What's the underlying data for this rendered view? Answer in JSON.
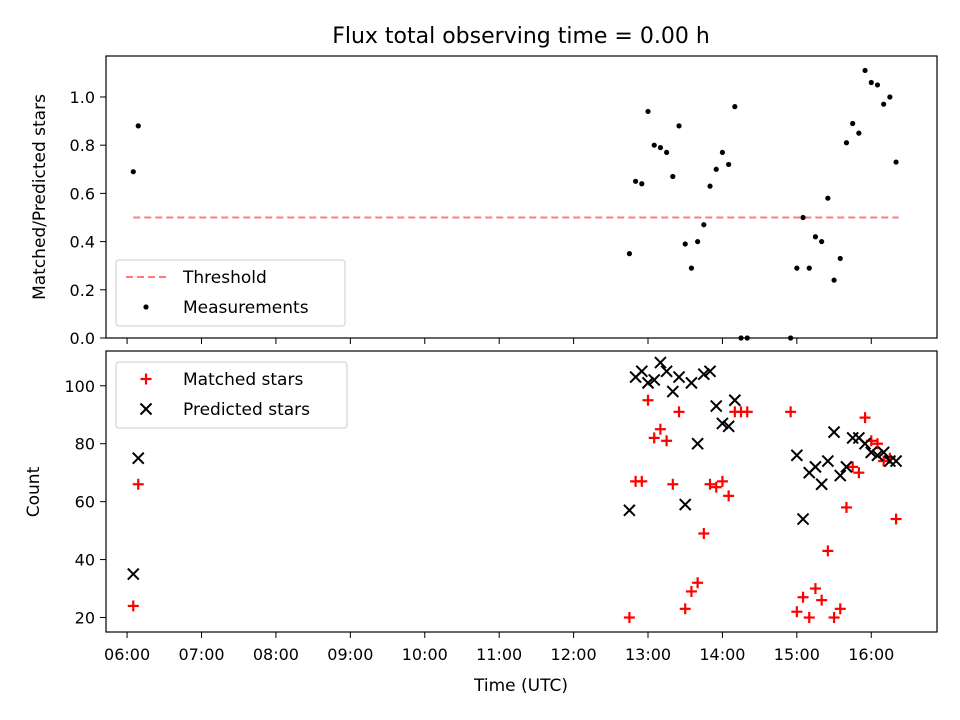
{
  "title": "Flux total observing time = 0.00 h",
  "chart_data": [
    {
      "type": "scatter",
      "ylabel": "Matched/Predicted stars",
      "ylim": [
        0,
        1.17
      ],
      "yticks": [
        "0.0",
        "0.2",
        "0.4",
        "0.6",
        "0.8",
        "1.0"
      ],
      "legend_placement": "lower-left",
      "threshold": {
        "name": "Threshold",
        "color": "#ff7b7b",
        "style": "dashed",
        "y": 0.5,
        "x_start": "06:05",
        "x_end": "16:22"
      },
      "series": [
        {
          "name": "Measurements",
          "color": "#000000",
          "marker": "dot",
          "points": [
            [
              "06:05",
              0.69
            ],
            [
              "06:09",
              0.88
            ],
            [
              "12:45",
              0.35
            ],
            [
              "12:50",
              0.65
            ],
            [
              "12:55",
              0.64
            ],
            [
              "13:00",
              0.94
            ],
            [
              "13:05",
              0.8
            ],
            [
              "13:10",
              0.79
            ],
            [
              "13:15",
              0.77
            ],
            [
              "13:20",
              0.67
            ],
            [
              "13:25",
              0.88
            ],
            [
              "13:30",
              0.39
            ],
            [
              "13:35",
              0.29
            ],
            [
              "13:40",
              0.4
            ],
            [
              "13:45",
              0.47
            ],
            [
              "13:50",
              0.63
            ],
            [
              "13:55",
              0.7
            ],
            [
              "14:00",
              0.77
            ],
            [
              "14:05",
              0.72
            ],
            [
              "14:10",
              0.96
            ],
            [
              "14:15",
              0.0
            ],
            [
              "14:20",
              0.0
            ],
            [
              "14:55",
              0.0
            ],
            [
              "15:00",
              0.29
            ],
            [
              "15:05",
              0.5
            ],
            [
              "15:10",
              0.29
            ],
            [
              "15:15",
              0.42
            ],
            [
              "15:20",
              0.4
            ],
            [
              "15:25",
              0.58
            ],
            [
              "15:30",
              0.24
            ],
            [
              "15:35",
              0.33
            ],
            [
              "15:40",
              0.81
            ],
            [
              "15:45",
              0.89
            ],
            [
              "15:50",
              0.85
            ],
            [
              "15:55",
              1.11
            ],
            [
              "16:00",
              1.06
            ],
            [
              "16:05",
              1.05
            ],
            [
              "16:10",
              0.97
            ],
            [
              "16:15",
              1.0
            ],
            [
              "16:20",
              0.73
            ]
          ]
        }
      ]
    },
    {
      "type": "scatter",
      "xlabel": "Time (UTC)",
      "ylabel": "Count",
      "ylim": [
        15,
        112
      ],
      "yticks": [
        "20",
        "40",
        "60",
        "80",
        "100"
      ],
      "xticks": [
        "06:00",
        "07:00",
        "08:00",
        "09:00",
        "10:00",
        "11:00",
        "12:00",
        "13:00",
        "14:00",
        "15:00",
        "16:00"
      ],
      "xlim": [
        "05:43",
        "16:53"
      ],
      "legend_placement": "upper-left",
      "series": [
        {
          "name": "Matched stars",
          "color": "#ff0000",
          "marker": "plus",
          "points": [
            [
              "06:05",
              24
            ],
            [
              "06:09",
              66
            ],
            [
              "12:45",
              20
            ],
            [
              "12:50",
              67
            ],
            [
              "12:55",
              67
            ],
            [
              "13:00",
              95
            ],
            [
              "13:05",
              82
            ],
            [
              "13:10",
              85
            ],
            [
              "13:15",
              81
            ],
            [
              "13:20",
              66
            ],
            [
              "13:25",
              91
            ],
            [
              "13:30",
              23
            ],
            [
              "13:35",
              29
            ],
            [
              "13:40",
              32
            ],
            [
              "13:45",
              49
            ],
            [
              "13:50",
              66
            ],
            [
              "13:55",
              65
            ],
            [
              "14:00",
              67
            ],
            [
              "14:05",
              62
            ],
            [
              "14:10",
              91
            ],
            [
              "14:15",
              91
            ],
            [
              "14:20",
              91
            ],
            [
              "14:55",
              91
            ],
            [
              "15:00",
              22
            ],
            [
              "15:05",
              27
            ],
            [
              "15:10",
              20
            ],
            [
              "15:15",
              30
            ],
            [
              "15:20",
              26
            ],
            [
              "15:25",
              43
            ],
            [
              "15:30",
              20
            ],
            [
              "15:35",
              23
            ],
            [
              "15:40",
              58
            ],
            [
              "15:45",
              72
            ],
            [
              "15:50",
              70
            ],
            [
              "15:55",
              89
            ],
            [
              "16:00",
              81
            ],
            [
              "16:05",
              80
            ],
            [
              "16:10",
              74
            ],
            [
              "16:15",
              75
            ],
            [
              "16:20",
              54
            ]
          ]
        },
        {
          "name": "Predicted stars",
          "color": "#000000",
          "marker": "x",
          "points": [
            [
              "06:05",
              35
            ],
            [
              "06:09",
              75
            ],
            [
              "12:45",
              57
            ],
            [
              "12:50",
              103
            ],
            [
              "12:55",
              105
            ],
            [
              "13:00",
              101
            ],
            [
              "13:05",
              102
            ],
            [
              "13:10",
              108
            ],
            [
              "13:15",
              105
            ],
            [
              "13:20",
              98
            ],
            [
              "13:25",
              103
            ],
            [
              "13:30",
              59
            ],
            [
              "13:35",
              101
            ],
            [
              "13:40",
              80
            ],
            [
              "13:45",
              104
            ],
            [
              "13:50",
              105
            ],
            [
              "13:55",
              93
            ],
            [
              "14:00",
              87
            ],
            [
              "14:05",
              86
            ],
            [
              "14:10",
              95
            ],
            [
              "15:00",
              76
            ],
            [
              "15:05",
              54
            ],
            [
              "15:10",
              70
            ],
            [
              "15:15",
              72
            ],
            [
              "15:20",
              66
            ],
            [
              "15:25",
              74
            ],
            [
              "15:30",
              84
            ],
            [
              "15:35",
              69
            ],
            [
              "15:40",
              72
            ],
            [
              "15:45",
              82
            ],
            [
              "15:50",
              82
            ],
            [
              "15:55",
              80
            ],
            [
              "16:00",
              77
            ],
            [
              "16:05",
              76
            ],
            [
              "16:10",
              77
            ],
            [
              "16:15",
              74
            ],
            [
              "16:20",
              74
            ]
          ]
        }
      ]
    }
  ]
}
